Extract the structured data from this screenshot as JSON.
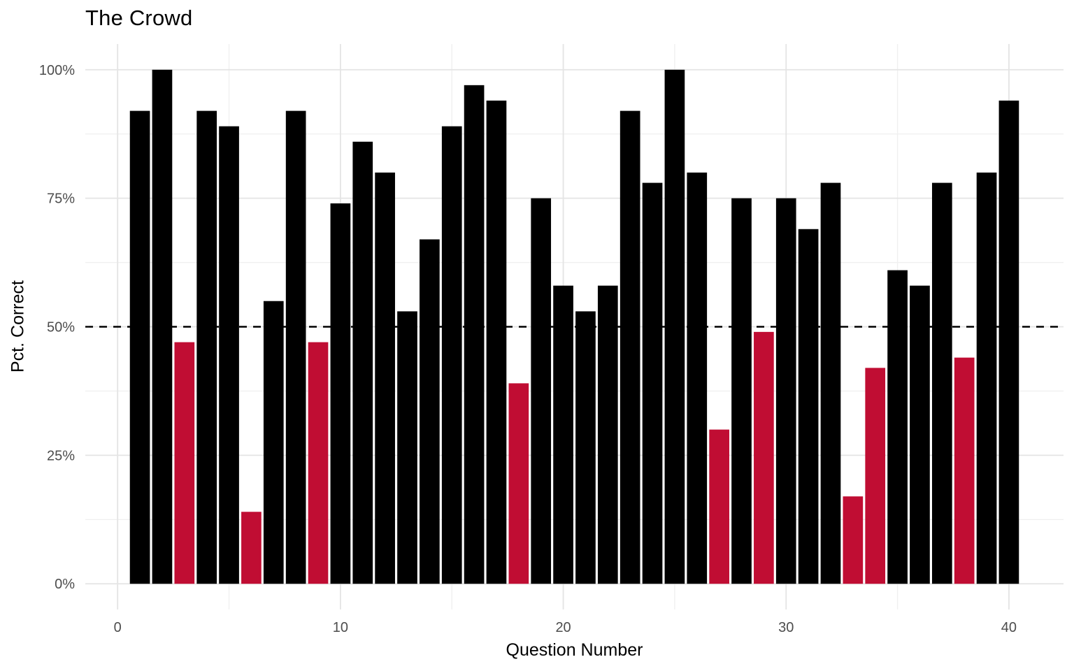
{
  "chart_data": {
    "type": "bar",
    "title": "The Crowd",
    "xlabel": "Question Number",
    "ylabel": "Pct. Correct",
    "categories": [
      1,
      2,
      3,
      4,
      5,
      6,
      7,
      8,
      9,
      10,
      11,
      12,
      13,
      14,
      15,
      16,
      17,
      18,
      19,
      20,
      21,
      22,
      23,
      24,
      25,
      26,
      27,
      28,
      29,
      30,
      31,
      32,
      33,
      34,
      35,
      36,
      37,
      38,
      39,
      40
    ],
    "values": [
      92,
      100,
      47,
      92,
      89,
      14,
      55,
      92,
      47,
      74,
      86,
      80,
      53,
      67,
      89,
      97,
      94,
      39,
      75,
      58,
      53,
      58,
      92,
      78,
      100,
      80,
      30,
      75,
      49,
      75,
      69,
      78,
      17,
      42,
      61,
      58,
      78,
      44,
      80,
      94
    ],
    "bar_color": "#000000",
    "below_threshold_color": "#C00D33",
    "threshold": 50,
    "reference_line": {
      "y": 50,
      "style": "dashed",
      "color": "#000000"
    },
    "x_tick_labels": [
      "0",
      "10",
      "20",
      "30",
      "40"
    ],
    "x_tick_values": [
      0,
      10,
      20,
      30,
      40
    ],
    "y_tick_labels": [
      "0%",
      "25%",
      "50%",
      "75%",
      "100%"
    ],
    "y_tick_values": [
      0,
      25,
      50,
      75,
      100
    ],
    "xlim": [
      0,
      40
    ],
    "ylim": [
      0,
      100
    ],
    "grid": {
      "on": true,
      "major_color": "#E4E4E4",
      "minor_color": "#F0F0F0",
      "x_minor": [
        5,
        15,
        25,
        35
      ],
      "y_minor": [
        12.5,
        37.5,
        62.5,
        87.5
      ]
    },
    "tick_label_color": "#4D4D4D",
    "legend": "none"
  }
}
